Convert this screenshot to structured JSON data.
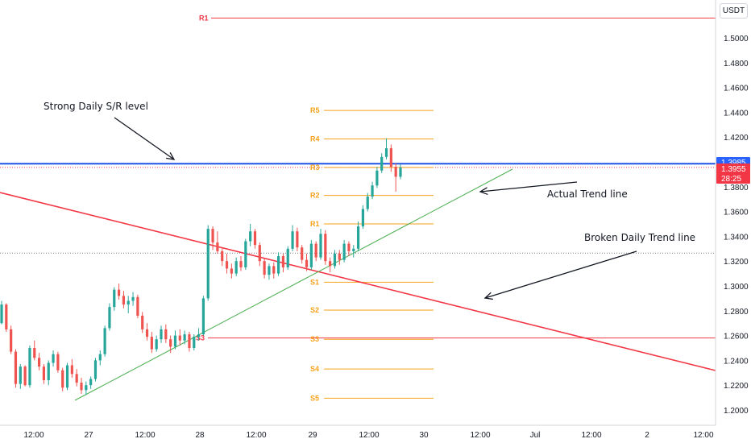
{
  "pair": {
    "unit": "USDT"
  },
  "chart_data": {
    "type": "candlestick",
    "y_axis": {
      "range": [
        1.185,
        1.527
      ],
      "ticks": [
        "1.5000",
        "1.4800",
        "1.4600",
        "1.4400",
        "1.4200",
        "1.4000",
        "1.3800",
        "1.3600",
        "1.3400",
        "1.3200",
        "1.3000",
        "1.2800",
        "1.2600",
        "1.2400",
        "1.2200",
        "1.2000"
      ]
    },
    "x_axis": {
      "ticks": [
        "12:00",
        "27",
        "12:00",
        "28",
        "12:00",
        "29",
        "12:00",
        "30",
        "12:00",
        "Jul",
        "12:00",
        "2",
        "12:00"
      ]
    },
    "price_tags": [
      {
        "label": "1.3985",
        "value": 1.3985,
        "color": "#2962ff"
      },
      {
        "label": "1.3955",
        "value": 1.3955,
        "color": "#f23645"
      },
      {
        "label": "28:25",
        "value": null,
        "color": "#f23645"
      }
    ],
    "horizontal_lines": [
      {
        "name": "strong-daily-sr",
        "value": 1.3985,
        "color": "#1e53e5"
      },
      {
        "name": "r1-daily",
        "value": 1.516,
        "color": "#f23645",
        "label": "R1"
      },
      {
        "name": "s3-daily",
        "value": 1.258,
        "color": "#f23645",
        "label": "S3"
      }
    ],
    "pivot_levels": [
      {
        "label": "R5",
        "value": 1.4415
      },
      {
        "label": "R4",
        "value": 1.4185
      },
      {
        "label": "R3",
        "value": 1.3955
      },
      {
        "label": "R2",
        "value": 1.373
      },
      {
        "label": "R1",
        "value": 1.35
      },
      {
        "label": "S1",
        "value": 1.303
      },
      {
        "label": "S2",
        "value": 1.2805
      },
      {
        "label": "S3",
        "value": 1.257
      },
      {
        "label": "S4",
        "value": 1.233
      },
      {
        "label": "S5",
        "value": 1.2095
      }
    ],
    "pivot_color": "#f7a21b",
    "dotted_lines": [
      {
        "value": 1.3955,
        "color": "#f23645"
      },
      {
        "value": 1.3265,
        "color": "#787b86"
      }
    ],
    "trend_lines": [
      {
        "name": "broken-daily-trend",
        "color": "#f23645"
      },
      {
        "name": "actual-trend",
        "color": "#4caf50"
      }
    ],
    "annotations": [
      {
        "name": "strong-sr-note",
        "text": "Strong Daily S/R level"
      },
      {
        "name": "actual-trend-note",
        "text": "Actual Trend line"
      },
      {
        "name": "broken-trend-note",
        "text": "Broken Daily Trend line"
      }
    ],
    "candles_ohlc": [
      [
        1.27,
        1.288,
        1.269,
        1.285
      ],
      [
        1.285,
        1.286,
        1.263,
        1.265
      ],
      [
        1.265,
        1.268,
        1.245,
        1.247
      ],
      [
        1.247,
        1.249,
        1.218,
        1.221
      ],
      [
        1.221,
        1.237,
        1.217,
        1.235
      ],
      [
        1.235,
        1.236,
        1.219,
        1.22
      ],
      [
        1.22,
        1.252,
        1.218,
        1.25
      ],
      [
        1.25,
        1.256,
        1.24,
        1.242
      ],
      [
        1.242,
        1.246,
        1.232,
        1.235
      ],
      [
        1.235,
        1.237,
        1.221,
        1.224
      ],
      [
        1.224,
        1.24,
        1.22,
        1.238
      ],
      [
        1.238,
        1.248,
        1.235,
        1.245
      ],
      [
        1.245,
        1.247,
        1.23,
        1.232
      ],
      [
        1.232,
        1.234,
        1.215,
        1.218
      ],
      [
        1.218,
        1.238,
        1.216,
        1.236
      ],
      [
        1.236,
        1.241,
        1.226,
        1.229
      ],
      [
        1.229,
        1.233,
        1.219,
        1.222
      ],
      [
        1.222,
        1.226,
        1.213,
        1.216
      ],
      [
        1.216,
        1.223,
        1.212,
        1.22
      ],
      [
        1.22,
        1.227,
        1.217,
        1.225
      ],
      [
        1.225,
        1.242,
        1.223,
        1.24
      ],
      [
        1.24,
        1.248,
        1.236,
        1.245
      ],
      [
        1.245,
        1.268,
        1.243,
        1.266
      ],
      [
        1.266,
        1.286,
        1.264,
        1.283
      ],
      [
        1.283,
        1.299,
        1.28,
        1.297
      ],
      [
        1.297,
        1.302,
        1.289,
        1.292
      ],
      [
        1.292,
        1.296,
        1.282,
        1.285
      ],
      [
        1.285,
        1.292,
        1.278,
        1.288
      ],
      [
        1.288,
        1.295,
        1.284,
        1.291
      ],
      [
        1.291,
        1.293,
        1.274,
        1.276
      ],
      [
        1.276,
        1.279,
        1.262,
        1.265
      ],
      [
        1.265,
        1.27,
        1.256,
        1.259
      ],
      [
        1.259,
        1.263,
        1.246,
        1.249
      ],
      [
        1.249,
        1.26,
        1.247,
        1.257
      ],
      [
        1.257,
        1.268,
        1.254,
        1.265
      ],
      [
        1.265,
        1.269,
        1.254,
        1.257
      ],
      [
        1.257,
        1.26,
        1.246,
        1.251
      ],
      [
        1.251,
        1.264,
        1.249,
        1.26
      ],
      [
        1.26,
        1.265,
        1.252,
        1.256
      ],
      [
        1.256,
        1.264,
        1.253,
        1.261
      ],
      [
        1.261,
        1.263,
        1.247,
        1.25
      ],
      [
        1.25,
        1.261,
        1.248,
        1.259
      ],
      [
        1.259,
        1.266,
        1.256,
        1.261
      ],
      [
        1.261,
        1.292,
        1.26,
        1.29
      ],
      [
        1.29,
        1.349,
        1.288,
        1.346
      ],
      [
        1.346,
        1.348,
        1.329,
        1.335
      ],
      [
        1.335,
        1.344,
        1.326,
        1.328
      ],
      [
        1.328,
        1.331,
        1.316,
        1.32
      ],
      [
        1.32,
        1.326,
        1.31,
        1.314
      ],
      [
        1.314,
        1.318,
        1.306,
        1.31
      ],
      [
        1.31,
        1.323,
        1.308,
        1.32
      ],
      [
        1.32,
        1.324,
        1.312,
        1.315
      ],
      [
        1.315,
        1.338,
        1.313,
        1.336
      ],
      [
        1.336,
        1.35,
        1.332,
        1.344
      ],
      [
        1.344,
        1.346,
        1.33,
        1.333
      ],
      [
        1.333,
        1.335,
        1.316,
        1.32
      ],
      [
        1.32,
        1.322,
        1.306,
        1.309
      ],
      [
        1.309,
        1.318,
        1.305,
        1.316
      ],
      [
        1.316,
        1.319,
        1.306,
        1.31
      ],
      [
        1.31,
        1.327,
        1.308,
        1.324
      ],
      [
        1.324,
        1.326,
        1.311,
        1.315
      ],
      [
        1.315,
        1.332,
        1.313,
        1.33
      ],
      [
        1.33,
        1.349,
        1.328,
        1.344
      ],
      [
        1.344,
        1.347,
        1.328,
        1.331
      ],
      [
        1.331,
        1.333,
        1.318,
        1.321
      ],
      [
        1.321,
        1.326,
        1.312,
        1.315
      ],
      [
        1.315,
        1.337,
        1.313,
        1.334
      ],
      [
        1.334,
        1.336,
        1.32,
        1.323
      ],
      [
        1.323,
        1.346,
        1.321,
        1.342
      ],
      [
        1.342,
        1.345,
        1.317,
        1.32
      ],
      [
        1.32,
        1.323,
        1.311,
        1.316
      ],
      [
        1.316,
        1.329,
        1.314,
        1.326
      ],
      [
        1.326,
        1.329,
        1.317,
        1.321
      ],
      [
        1.321,
        1.337,
        1.319,
        1.334
      ],
      [
        1.334,
        1.336,
        1.324,
        1.328
      ],
      [
        1.328,
        1.333,
        1.323,
        1.33
      ],
      [
        1.33,
        1.352,
        1.328,
        1.348
      ],
      [
        1.348,
        1.365,
        1.346,
        1.362
      ],
      [
        1.362,
        1.375,
        1.36,
        1.372
      ],
      [
        1.372,
        1.384,
        1.37,
        1.381
      ],
      [
        1.381,
        1.396,
        1.379,
        1.393
      ],
      [
        1.393,
        1.407,
        1.391,
        1.404
      ],
      [
        1.404,
        1.419,
        1.402,
        1.411
      ],
      [
        1.411,
        1.414,
        1.392,
        1.396
      ],
      [
        1.396,
        1.399,
        1.376,
        1.388
      ],
      [
        1.388,
        1.398,
        1.386,
        1.3955
      ]
    ]
  }
}
